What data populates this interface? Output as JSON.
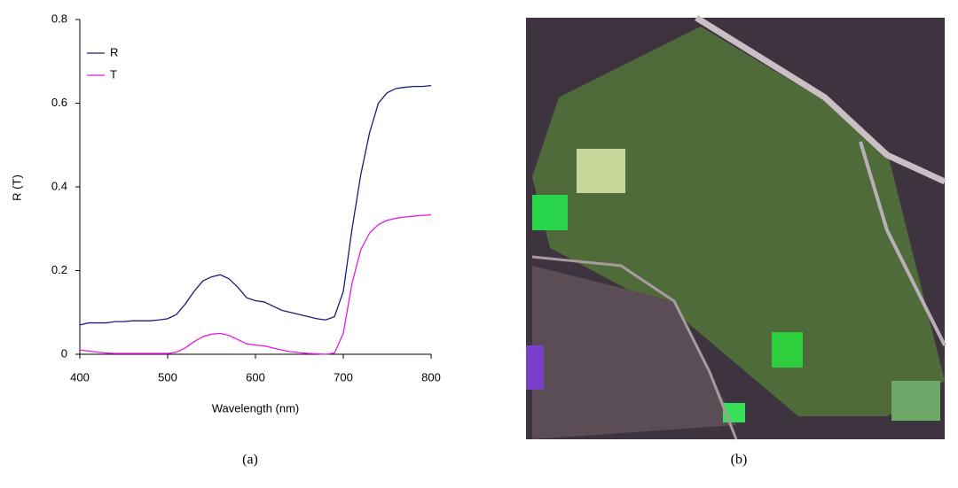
{
  "chart_data": {
    "type": "line",
    "xlabel": "Wavelength (nm)",
    "ylabel": "R (T)",
    "x": [
      400,
      410,
      420,
      430,
      440,
      450,
      460,
      470,
      480,
      490,
      500,
      510,
      520,
      530,
      540,
      550,
      560,
      570,
      580,
      590,
      600,
      610,
      620,
      630,
      640,
      650,
      660,
      670,
      680,
      690,
      700,
      710,
      720,
      730,
      740,
      750,
      760,
      770,
      780,
      790,
      800
    ],
    "series": [
      {
        "name": "R",
        "color": "#1c1c7c",
        "values": [
          0.07,
          0.075,
          0.075,
          0.075,
          0.078,
          0.078,
          0.08,
          0.08,
          0.08,
          0.082,
          0.085,
          0.095,
          0.12,
          0.15,
          0.175,
          0.185,
          0.19,
          0.18,
          0.16,
          0.135,
          0.128,
          0.125,
          0.115,
          0.105,
          0.1,
          0.095,
          0.09,
          0.085,
          0.082,
          0.09,
          0.15,
          0.3,
          0.43,
          0.53,
          0.6,
          0.625,
          0.635,
          0.638,
          0.64,
          0.64,
          0.642
        ]
      },
      {
        "name": "T",
        "color": "#e619e6",
        "values": [
          0.01,
          0.008,
          0.005,
          0.003,
          0.002,
          0.002,
          0.002,
          0.002,
          0.002,
          0.002,
          0.002,
          0.005,
          0.015,
          0.03,
          0.042,
          0.048,
          0.05,
          0.045,
          0.035,
          0.025,
          0.022,
          0.02,
          0.015,
          0.01,
          0.006,
          0.004,
          0.002,
          0.001,
          0,
          0.003,
          0.05,
          0.17,
          0.25,
          0.29,
          0.31,
          0.32,
          0.325,
          0.328,
          0.33,
          0.332,
          0.333
        ]
      }
    ],
    "xlim": [
      400,
      800
    ],
    "xticks": [
      400,
      500,
      600,
      700,
      800
    ],
    "ylim": [
      0,
      0.8
    ],
    "yticks": [
      0,
      0.2,
      0.4,
      0.6,
      0.8
    ],
    "legend": "upper left",
    "grid": false
  },
  "captions": [
    "(a)",
    "(b)"
  ]
}
